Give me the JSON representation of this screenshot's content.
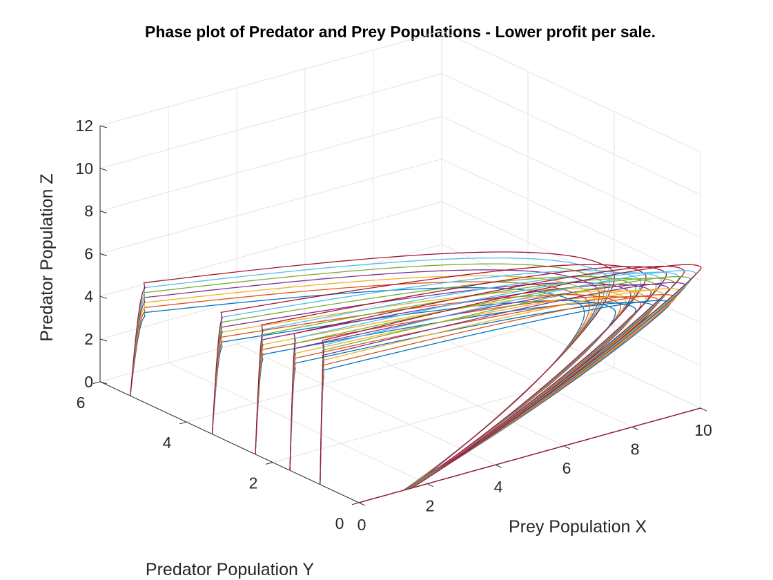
{
  "chart_data": {
    "type": "line",
    "title": "Phase plot of Predator and Prey Populations - Lower profit per sale.",
    "xlabel": "Prey Population X",
    "ylabel": "Predator Population Y",
    "zlabel": "Predator Population Z",
    "xlim": [
      0,
      10
    ],
    "ylim": [
      0,
      6
    ],
    "zlim": [
      0,
      12
    ],
    "xticks": [
      0,
      2,
      4,
      6,
      8,
      10
    ],
    "yticks": [
      0,
      2,
      4,
      6
    ],
    "zticks": [
      0,
      2,
      4,
      6,
      8,
      10,
      12
    ],
    "grid": true,
    "view": "3d",
    "colors": [
      "#0072BD",
      "#D95319",
      "#EDB120",
      "#7E2F8E",
      "#77AC30",
      "#4DBEEE",
      "#A2142F"
    ],
    "families": [
      {
        "y0": 5.3,
        "z_plateau": 4.9,
        "x_max": 9.2
      },
      {
        "y0": 3.4,
        "z_plateau": 5.2,
        "x_max": 9.4
      },
      {
        "y0": 2.4,
        "z_plateau": 5.5,
        "x_max": 9.6
      },
      {
        "y0": 1.6,
        "z_plateau": 5.8,
        "x_max": 9.8
      },
      {
        "y0": 0.9,
        "z_plateau": 6.1,
        "x_max": 10.0
      }
    ]
  }
}
